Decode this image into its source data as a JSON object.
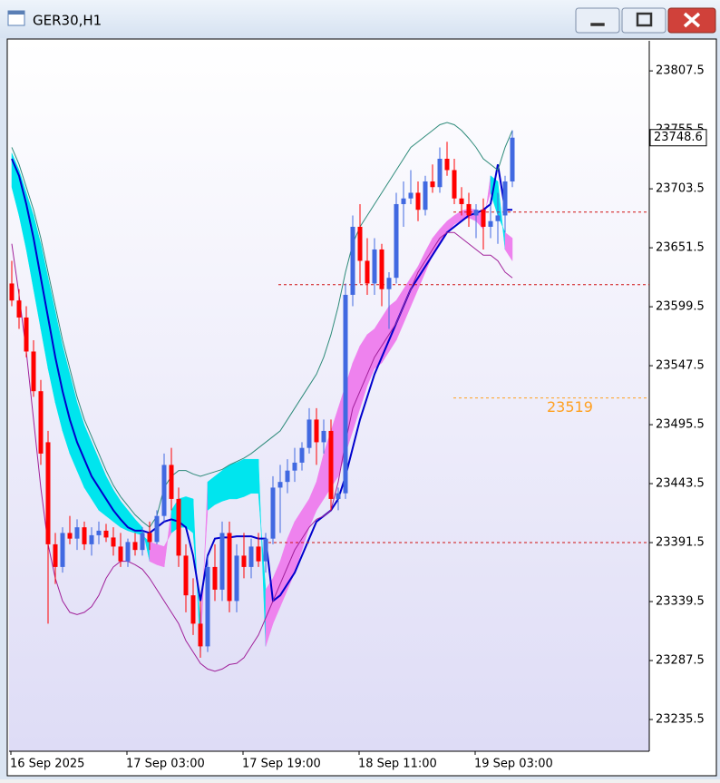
{
  "chart_data": {
    "type": "candlestick",
    "title": "GER30,H1",
    "categories": [
      "16 Sep 2025",
      null,
      null,
      null,
      null,
      null,
      null,
      null,
      null,
      null,
      null,
      null,
      null,
      null,
      null,
      null,
      "17 Sep 03:00",
      null,
      null,
      null,
      null,
      null,
      null,
      null,
      null,
      null,
      null,
      null,
      null,
      null,
      null,
      null,
      "17 Sep 19:00",
      null,
      null,
      null,
      null,
      null,
      null,
      null,
      null,
      null,
      null,
      null,
      null,
      null,
      null,
      null,
      "18 Sep 11:00",
      null,
      null,
      null,
      null,
      null,
      null,
      null,
      null,
      null,
      null,
      null,
      null,
      null,
      null,
      null,
      "19 Sep 03:00",
      null,
      null,
      null,
      null,
      null
    ],
    "open": [
      23620,
      23605,
      23590,
      23560,
      23525,
      23480,
      23390,
      23370,
      23400,
      23395,
      23405,
      23390,
      23398,
      23402,
      23396,
      23388,
      23375,
      23392,
      23385,
      23400,
      23392,
      23415,
      23460,
      23430,
      23380,
      23345,
      23320,
      23300,
      23370,
      23350,
      23400,
      23340,
      23380,
      23370,
      23388,
      23375,
      23395,
      23440,
      23445,
      23455,
      23462,
      23475,
      23500,
      23480,
      23490,
      23430,
      23435,
      23610,
      23670,
      23640,
      23620,
      23650,
      23615,
      23625,
      23690,
      23695,
      23700,
      23685,
      23710,
      23705,
      23730,
      23720,
      23695,
      23690,
      23680,
      23685,
      23670,
      23675,
      23680,
      23710
    ],
    "high": [
      23640,
      23615,
      23600,
      23570,
      23535,
      23490,
      23400,
      23405,
      23415,
      23412,
      23410,
      23405,
      23410,
      23408,
      23405,
      23400,
      23395,
      23400,
      23405,
      23410,
      23420,
      23470,
      23475,
      23440,
      23390,
      23360,
      23340,
      23380,
      23390,
      23410,
      23410,
      23390,
      23400,
      23395,
      23400,
      23400,
      23450,
      23460,
      23465,
      23475,
      23480,
      23510,
      23510,
      23500,
      23500,
      23440,
      23620,
      23680,
      23690,
      23660,
      23660,
      23655,
      23630,
      23700,
      23710,
      23720,
      23710,
      23715,
      23725,
      23740,
      23745,
      23730,
      23705,
      23700,
      23690,
      23695,
      23690,
      23700,
      23715,
      23755
    ],
    "low": [
      23600,
      23580,
      23555,
      23520,
      23460,
      23320,
      23355,
      23365,
      23390,
      23385,
      23385,
      23380,
      23390,
      23392,
      23380,
      23370,
      23370,
      23380,
      23380,
      23385,
      23390,
      23410,
      23420,
      23370,
      23330,
      23310,
      23290,
      23295,
      23340,
      23340,
      23330,
      23330,
      23360,
      23360,
      23370,
      23365,
      23390,
      23400,
      23435,
      23445,
      23455,
      23470,
      23460,
      23470,
      23420,
      23420,
      23430,
      23600,
      23620,
      23610,
      23610,
      23600,
      23580,
      23620,
      23670,
      23690,
      23675,
      23680,
      23700,
      23700,
      23715,
      23690,
      23680,
      23670,
      23660,
      23650,
      23660,
      23655,
      23665,
      23705
    ],
    "close": [
      23605,
      23590,
      23560,
      23525,
      23470,
      23390,
      23370,
      23400,
      23395,
      23405,
      23390,
      23398,
      23402,
      23396,
      23388,
      23375,
      23392,
      23385,
      23400,
      23392,
      23415,
      23460,
      23430,
      23380,
      23345,
      23320,
      23300,
      23370,
      23350,
      23400,
      23340,
      23380,
      23370,
      23388,
      23375,
      23395,
      23440,
      23445,
      23455,
      23462,
      23475,
      23500,
      23480,
      23490,
      23430,
      23435,
      23610,
      23670,
      23640,
      23620,
      23650,
      23615,
      23625,
      23690,
      23695,
      23700,
      23685,
      23710,
      23705,
      23730,
      23720,
      23695,
      23690,
      23680,
      23685,
      23670,
      23675,
      23680,
      23710,
      23748.6
    ],
    "up_color": "#4169e1",
    "down_color": "#ff0000",
    "ribbon": {
      "up_color": "#00e5ee",
      "down_color": "#ee82ee",
      "a": [
        23735,
        23720,
        23700,
        23680,
        23655,
        23625,
        23595,
        23565,
        23540,
        23515,
        23495,
        23480,
        23465,
        23450,
        23438,
        23428,
        23420,
        23412,
        23405,
        23375,
        23372,
        23370,
        23420,
        23430,
        23432,
        23430,
        23290,
        23445,
        23450,
        23455,
        23460,
        23462,
        23465,
        23465,
        23465,
        23300,
        23320,
        23335,
        23350,
        23365,
        23385,
        23405,
        23420,
        23430,
        23440,
        23450,
        23470,
        23490,
        23510,
        23530,
        23545,
        23550,
        23560,
        23570,
        23585,
        23600,
        23615,
        23630,
        23645,
        23655,
        23665,
        23672,
        23676,
        23678,
        23675,
        23668,
        23715,
        23710,
        23650,
        23640
      ],
      "b": [
        23705,
        23680,
        23650,
        23615,
        23580,
        23545,
        23515,
        23490,
        23470,
        23455,
        23440,
        23430,
        23420,
        23415,
        23410,
        23405,
        23402,
        23400,
        23398,
        23392,
        23390,
        23388,
        23400,
        23405,
        23405,
        23400,
        23320,
        23420,
        23425,
        23428,
        23430,
        23430,
        23432,
        23435,
        23435,
        23350,
        23360,
        23375,
        23395,
        23410,
        23420,
        23430,
        23445,
        23470,
        23490,
        23510,
        23530,
        23550,
        23565,
        23575,
        23580,
        23590,
        23600,
        23605,
        23615,
        23625,
        23635,
        23648,
        23660,
        23668,
        23675,
        23680,
        23684,
        23686,
        23685,
        23680,
        23700,
        23680,
        23665,
        23660
      ]
    },
    "lines": [
      {
        "color": "#0000cd",
        "width": 2,
        "values": [
          23730,
          23715,
          23690,
          23660,
          23625,
          23590,
          23555,
          23525,
          23500,
          23480,
          23465,
          23450,
          23440,
          23430,
          23420,
          23412,
          23405,
          23402,
          23402,
          23400,
          23405,
          23410,
          23412,
          23410,
          23405,
          23380,
          23340,
          23380,
          23395,
          23396,
          23396,
          23397,
          23397,
          23397,
          23395,
          23395,
          23340,
          23345,
          23355,
          23365,
          23380,
          23395,
          23410,
          23415,
          23420,
          23430,
          23450,
          23475,
          23500,
          23520,
          23540,
          23555,
          23570,
          23585,
          23600,
          23615,
          23625,
          23635,
          23645,
          23655,
          23665,
          23670,
          23675,
          23680,
          23682,
          23685,
          23690,
          23725,
          23685,
          23685
        ]
      },
      {
        "color": "#2e8b7a",
        "width": 1,
        "values": [
          23740,
          23725,
          23705,
          23685,
          23660,
          23630,
          23600,
          23570,
          23545,
          23520,
          23500,
          23485,
          23470,
          23455,
          23442,
          23432,
          23424,
          23416,
          23410,
          23405,
          23415,
          23440,
          23450,
          23455,
          23455,
          23452,
          23450,
          23452,
          23454,
          23456,
          23460,
          23463,
          23466,
          23470,
          23475,
          23480,
          23485,
          23490,
          23500,
          23510,
          23520,
          23530,
          23540,
          23555,
          23575,
          23600,
          23630,
          23655,
          23670,
          23680,
          23690,
          23700,
          23710,
          23720,
          23730,
          23740,
          23745,
          23750,
          23755,
          23760,
          23762,
          23760,
          23755,
          23748,
          23740,
          23730,
          23725,
          23720,
          23740,
          23755
        ]
      },
      {
        "color": "#a0209a",
        "width": 1,
        "values": [
          23655,
          23610,
          23560,
          23500,
          23440,
          23390,
          23360,
          23340,
          23330,
          23328,
          23330,
          23335,
          23345,
          23360,
          23370,
          23375,
          23375,
          23372,
          23368,
          23360,
          23350,
          23340,
          23330,
          23320,
          23305,
          23295,
          23285,
          23280,
          23278,
          23280,
          23284,
          23285,
          23290,
          23300,
          23310,
          23325,
          23340,
          23355,
          23370,
          23385,
          23395,
          23405,
          23412,
          23415,
          23420,
          23445,
          23480,
          23510,
          23525,
          23540,
          23555,
          23565,
          23575,
          23585,
          23600,
          23615,
          23630,
          23640,
          23650,
          23660,
          23665,
          23665,
          23660,
          23655,
          23650,
          23645,
          23645,
          23640,
          23630,
          23625
        ]
      }
    ],
    "levels": [
      {
        "value": 23683,
        "color": "#d01010"
      },
      {
        "value": 23619,
        "color": "#d01010"
      },
      {
        "value": 23391.5,
        "color": "#d01010"
      }
    ],
    "annotation": {
      "value": 23519,
      "color": "#ffa020"
    },
    "ylim": [
      23207.5,
      23834
    ],
    "yticks": [
      23235.5,
      23287.5,
      23339.5,
      23391.5,
      23443.5,
      23495.5,
      23547.5,
      23599.5,
      23651.5,
      23703.5,
      23755.5,
      23807.5
    ]
  }
}
